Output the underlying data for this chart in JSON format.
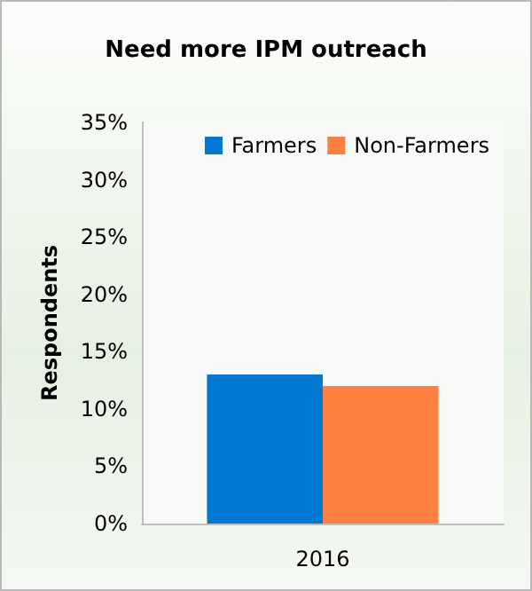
{
  "chart_data": {
    "type": "bar",
    "title": "Need more IPM outreach",
    "ylabel": "Respondents",
    "categories": [
      "2016"
    ],
    "series": [
      {
        "name": "Farmers",
        "color": "#0078d4",
        "values": [
          13
        ]
      },
      {
        "name": "Non-Farmers",
        "color": "#ff7f3f",
        "values": [
          12
        ]
      }
    ],
    "ylim": [
      0,
      35
    ],
    "yticks": [
      {
        "value": 0,
        "label": "0%"
      },
      {
        "value": 5,
        "label": "5%"
      },
      {
        "value": 10,
        "label": "10%"
      },
      {
        "value": 15,
        "label": "15%"
      },
      {
        "value": 20,
        "label": "20%"
      },
      {
        "value": 25,
        "label": "25%"
      },
      {
        "value": 30,
        "label": "30%"
      },
      {
        "value": 35,
        "label": "35%"
      }
    ],
    "grid": false,
    "legend": "top right"
  }
}
